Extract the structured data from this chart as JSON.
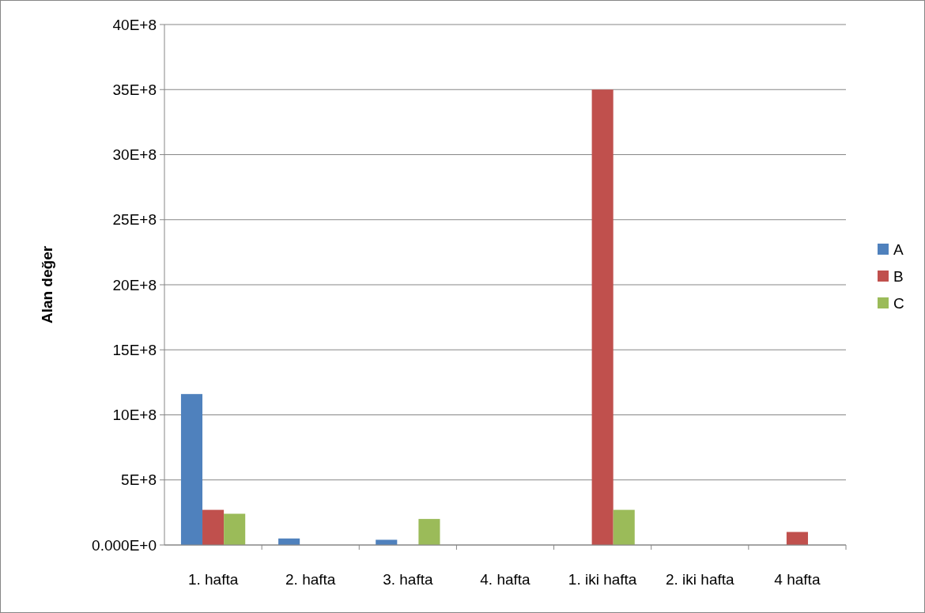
{
  "chart_data": {
    "type": "bar",
    "ylabel": "Alan değer",
    "categories": [
      "1. hafta",
      "2. hafta",
      "3. hafta",
      "4. hafta",
      "1. iki hafta",
      "2. iki hafta",
      "4 hafta"
    ],
    "series": [
      {
        "name": "A",
        "color": "#4f81bd",
        "values": [
          1160000000,
          50000000,
          40000000,
          0,
          0,
          0,
          0
        ]
      },
      {
        "name": "B",
        "color": "#c0504d",
        "values": [
          270000000,
          0,
          0,
          0,
          3500000000,
          0,
          100000000
        ]
      },
      {
        "name": "C",
        "color": "#9bbb59",
        "values": [
          240000000,
          0,
          200000000,
          0,
          270000000,
          0,
          0
        ]
      }
    ],
    "ylim": [
      0,
      4000000000
    ],
    "yticks": [
      {
        "value": 0,
        "label": "0.000E+0"
      },
      {
        "value": 500000000,
        "label": "5E+8"
      },
      {
        "value": 1000000000,
        "label": "10E+8"
      },
      {
        "value": 1500000000,
        "label": "15E+8"
      },
      {
        "value": 2000000000,
        "label": "20E+8"
      },
      {
        "value": 2500000000,
        "label": "25E+8"
      },
      {
        "value": 3000000000,
        "label": "30E+8"
      },
      {
        "value": 3500000000,
        "label": "35E+8"
      },
      {
        "value": 4000000000,
        "label": "40E+8"
      }
    ],
    "grid": "y",
    "legend": "right"
  }
}
